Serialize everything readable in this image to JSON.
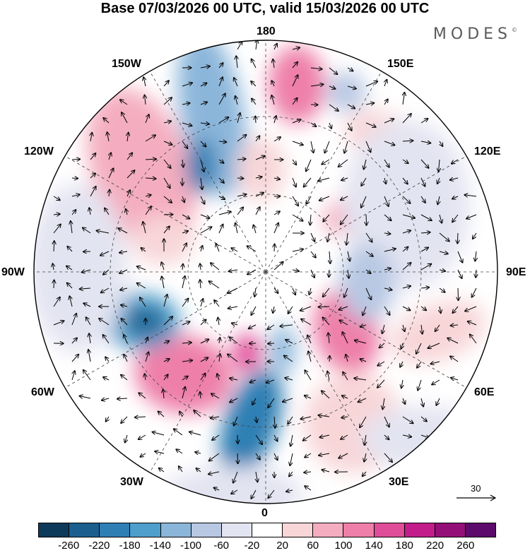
{
  "title": "Base 07/03/2026 00 UTC, valid 15/03/2026 00 UTC",
  "brand": "MODES",
  "brand_mark": "©",
  "map_labels": {
    "lon_180": "180",
    "lon_150w": "150W",
    "lon_150e": "150E",
    "lon_120w": "120W",
    "lon_120e": "120E",
    "lon_90w": "90W",
    "lon_90e": "90E",
    "lon_60w": "60W",
    "lon_60e": "60E",
    "lon_30w": "30W",
    "lon_30e": "30E",
    "lon_0": "0"
  },
  "reference_vector": "30",
  "colorbar": {
    "colors": [
      "#0e3a5a",
      "#1b5f8e",
      "#2d7fb4",
      "#4f9fcc",
      "#8bb6da",
      "#b8c8e3",
      "#e3e4f1",
      "#ffffff",
      "#f8d6d8",
      "#f4adc0",
      "#ee7fa8",
      "#e04d98",
      "#c21d8a",
      "#941078",
      "#5c0a6b"
    ],
    "ticks": [
      "-260",
      "-220",
      "-180",
      "-140",
      "-100",
      "-60",
      "-20",
      "20",
      "60",
      "100",
      "140",
      "180",
      "220",
      "260"
    ]
  }
}
